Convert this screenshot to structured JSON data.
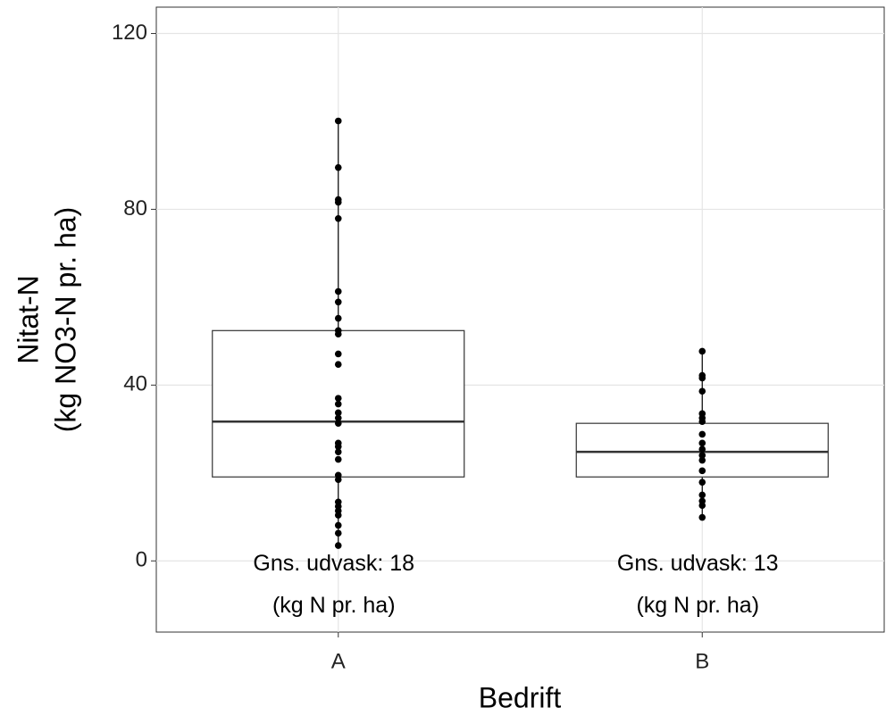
{
  "chart_data": {
    "type": "box",
    "x_label": "Bedrift",
    "y_label": [
      "Nitat-N",
      "(kg NO3-N pr. ha)"
    ],
    "categories": [
      "A",
      "B"
    ],
    "boxes": [
      {
        "whisker_low": 3.5,
        "q1": 19.1,
        "median": 31.7,
        "q3": 52.4,
        "whisker_high": 100.1
      },
      {
        "whisker_low": 9.9,
        "q1": 19.1,
        "median": 24.8,
        "q3": 31.3,
        "whisker_high": 47.7
      }
    ],
    "points": [
      [
        100.1,
        89.5,
        82.2,
        81.6,
        77.9,
        61.3,
        58.9,
        55.2,
        52.4,
        51.6,
        47.1,
        44.7,
        37.0,
        35.7,
        33.7,
        32.5,
        31.3,
        26.8,
        26.0,
        24.8,
        23.1,
        19.5,
        18.5,
        13.4,
        12.4,
        11.4,
        10.4,
        8.1,
        6.3,
        3.5
      ],
      [
        47.7,
        42.2,
        41.6,
        38.6,
        33.5,
        32.5,
        31.7,
        28.8,
        26.8,
        25.4,
        24.0,
        22.9,
        20.5,
        17.9,
        15.0,
        13.6,
        12.6,
        9.9
      ]
    ],
    "annotations": [
      [
        "Gns. udvask: 18",
        "(kg N pr. ha)"
      ],
      [
        "Gns. udvask: 13",
        "(kg N pr. ha)"
      ]
    ],
    "color": "#000000",
    "ylim": [
      -16.2,
      126
    ],
    "yticks": [
      0,
      40,
      80,
      120
    ],
    "grid": true
  }
}
